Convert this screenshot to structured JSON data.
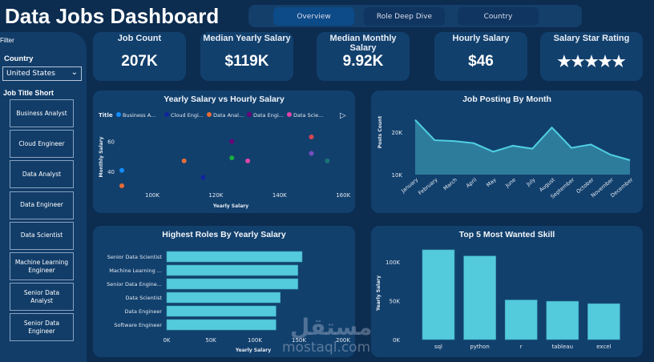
{
  "header": {
    "title": "Data Jobs Dashboard"
  },
  "tabs": [
    {
      "label": "Overview",
      "active": true
    },
    {
      "label": "Role Deep Dive"
    },
    {
      "label": "Country"
    }
  ],
  "kpis": [
    {
      "label": "Job Count",
      "value": "207K"
    },
    {
      "label": "Median Yearly Salary",
      "value": "$119K"
    },
    {
      "label": "Median Monthly Salary",
      "value": "9.92K"
    },
    {
      "label": "Hourly Salary",
      "value": "$46"
    },
    {
      "label": "Salary Star Rating",
      "value": "★★★★★",
      "stars": 5
    }
  ],
  "sidebar": {
    "filter_label": "Filter",
    "country_label": "Country",
    "country_value": "United States",
    "job_title_label": "Job Title Short",
    "job_titles": [
      "Business Analyst",
      "Cloud Engineer",
      "Data Analyst",
      "Data Engineer",
      "Data Scientist",
      "Machine Learning Engineer",
      "Senior Data Analyst",
      "Senior Data Engineer"
    ]
  },
  "watermark": {
    "text": "mostaql.com",
    "arabic": "مستقل"
  },
  "chart_data": [
    {
      "type": "scatter",
      "title": "Yearly Salary vs Hourly Salary",
      "xlabel": "Yearly Salary",
      "ylabel": "Monthly Salary",
      "legend_title": "Title",
      "legend": [
        {
          "name": "Business A...",
          "color": "#118dff"
        },
        {
          "name": "Cloud Engi...",
          "color": "#12239e"
        },
        {
          "name": "Data Anal...",
          "color": "#e66c37"
        },
        {
          "name": "Data Engi...",
          "color": "#6b007b"
        },
        {
          "name": "Data Scie...",
          "color": "#e044a7"
        }
      ],
      "xticks": [
        "100K",
        "120K",
        "140K",
        "160K"
      ],
      "yticks": [
        "40",
        "60"
      ],
      "xlim": [
        90000,
        160000
      ],
      "ylim": [
        30,
        65
      ],
      "points": [
        {
          "x": 90000,
          "y": 40.7,
          "color": "#118dff"
        },
        {
          "x": 90000,
          "y": 30.4,
          "color": "#e66c37"
        },
        {
          "x": 110000,
          "y": 47,
          "color": "#e66c37"
        },
        {
          "x": 116000,
          "y": 36,
          "color": "#12239e"
        },
        {
          "x": 125000,
          "y": 60,
          "color": "#6b007b"
        },
        {
          "x": 125000,
          "y": 49,
          "color": "#1aab40"
        },
        {
          "x": 130000,
          "y": 47,
          "color": "#e044a7"
        },
        {
          "x": 150000,
          "y": 63,
          "color": "#d64550"
        },
        {
          "x": 150000,
          "y": 52,
          "color": "#744ec2"
        },
        {
          "x": 155000,
          "y": 47,
          "color": "#197278"
        }
      ]
    },
    {
      "type": "area",
      "title": "Job Posting By Month",
      "ylabel": "Posts Count",
      "yticks": [
        "10K",
        "20K"
      ],
      "ylim": [
        10000,
        24000
      ],
      "categories": [
        "January",
        "February",
        "March",
        "April",
        "May",
        "June",
        "July",
        "August",
        "September",
        "October",
        "November",
        "December"
      ],
      "values": [
        22900,
        18100,
        17900,
        17400,
        15400,
        16800,
        16100,
        21100,
        16300,
        17100,
        14700,
        13400
      ]
    },
    {
      "type": "bar",
      "orientation": "horizontal",
      "title": "Highest Roles By Yearly Salary",
      "xlabel": "Yearly Salary",
      "categories": [
        "Senior Data Scientist",
        "Machine Learning ...",
        "Senior Data Engine...",
        "Data Scientist",
        "Data Engineer",
        "Software Engineer"
      ],
      "values": [
        153600,
        148800,
        148800,
        128800,
        124000,
        124000
      ],
      "xticks": [
        "0K",
        "50K",
        "100K",
        "150K",
        "200K"
      ],
      "xlim": [
        0,
        200000
      ]
    },
    {
      "type": "bar",
      "title": "Top 5 Most Wanted Skill",
      "ylabel": "Yearly Salary",
      "categories": [
        "sql",
        "python",
        "r",
        "tableau",
        "excel"
      ],
      "values": [
        115500,
        107600,
        51000,
        49300,
        46200
      ],
      "yticks": [
        "0K",
        "50K",
        "100K"
      ],
      "ylim": [
        0,
        100000
      ]
    }
  ],
  "colors": {
    "background": "#0c2c50",
    "card": "#12406d",
    "accent": "#53cbdc"
  }
}
